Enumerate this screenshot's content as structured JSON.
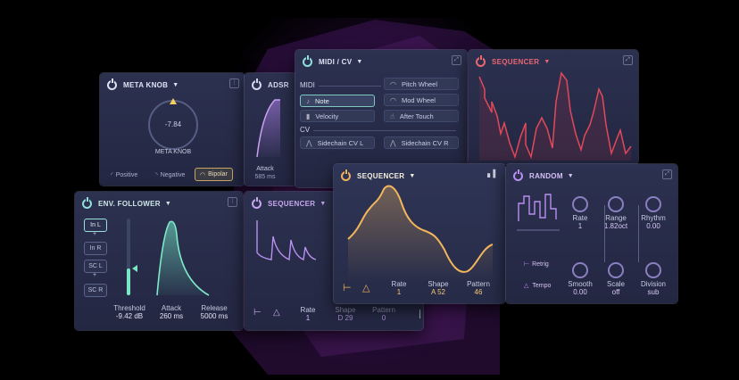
{
  "meta_knob": {
    "title": "META KNOB",
    "value": "-7.84",
    "name": "META KNOB",
    "modes": [
      "Positive",
      "Negative",
      "Bipolar"
    ],
    "selected": "Bipolar"
  },
  "adsr": {
    "title": "ADSR",
    "attack_label": "Attack",
    "attack_value": "585 ms"
  },
  "midi_cv": {
    "title": "MIDI / CV",
    "midi_section": "MIDI",
    "cv_section": "CV",
    "left_items": [
      "Note",
      "Velocity"
    ],
    "right_items": [
      "Pitch Wheel",
      "Mod Wheel",
      "After Touch"
    ],
    "cv_items": [
      "Sidechain CV L",
      "Sidechain CV R"
    ],
    "selected": "Note"
  },
  "seq_top": {
    "title": "SEQUENCER",
    "color": "#e0505f"
  },
  "env": {
    "title": "ENV. FOLLOWER",
    "inputs": [
      "In L",
      "In R",
      "SC L",
      "SC R"
    ],
    "plus": "+",
    "threshold_label": "Threshold",
    "threshold_value": "-9.42 dB",
    "attack_label": "Attack",
    "attack_value": "260 ms",
    "release_label": "Release",
    "release_value": "5000 ms"
  },
  "seq_back": {
    "title": "SEQUENCER",
    "rate_label": "Rate",
    "rate_value": "1",
    "shape_label": "Shape",
    "shape_value": "D 29",
    "pattern_label": "Pattern",
    "pattern_value": "0"
  },
  "seq_main": {
    "title": "SEQUENCER",
    "rate_label": "Rate",
    "rate_value": "1",
    "shape_label": "Shape",
    "shape_value": "A 52",
    "pattern_label": "Pattern",
    "pattern_value": "46",
    "accent": "#f0b35a"
  },
  "random": {
    "title": "RANDOM",
    "rate_label": "Rate",
    "rate_value": "1",
    "range_label": "Range",
    "range_value": "1.82oct",
    "rhythm_label": "Rhythm",
    "rhythm_value": "0.00",
    "retrig_label": "Retrig",
    "tempo_label": "Tempo",
    "smooth_label": "Smooth",
    "smooth_value": "0.00",
    "scale_label": "Scale",
    "scale_value": "off",
    "division_label": "Division",
    "division_value": "sub"
  }
}
